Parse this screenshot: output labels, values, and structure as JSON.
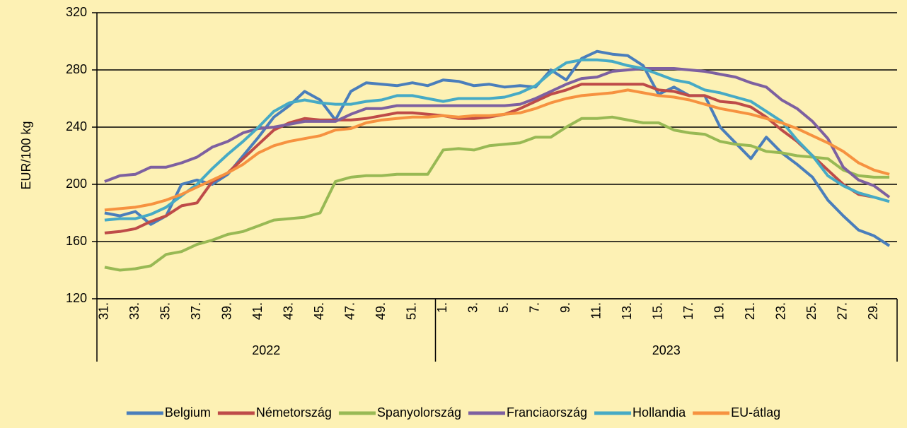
{
  "chart_data": {
    "type": "line",
    "y_label": "EUR/100 kg",
    "categories": [
      "31.",
      null,
      "33.",
      null,
      "35.",
      null,
      "37.",
      null,
      "39.",
      null,
      "41.",
      null,
      "43.",
      null,
      "45.",
      null,
      "47.",
      null,
      "49.",
      null,
      "51.",
      null,
      "1.",
      null,
      "3.",
      null,
      "5.",
      null,
      "7.",
      null,
      "9.",
      null,
      "11.",
      null,
      "13.",
      null,
      "15.",
      null,
      "17.",
      null,
      "19.",
      null,
      "21.",
      null,
      "23.",
      null,
      "25.",
      null,
      "27.",
      null,
      "29.",
      null
    ],
    "category_groups": [
      {
        "label": "2022",
        "size": 22
      },
      {
        "label": "2023",
        "size": 30
      }
    ],
    "ylim": [
      120,
      320
    ],
    "yticks": [
      120,
      160,
      200,
      240,
      280,
      320
    ],
    "grid": true,
    "series": [
      {
        "name": "Belgium",
        "color": "#4a7ebb",
        "values": [
          180,
          178,
          181,
          172,
          178,
          200,
          203,
          200,
          207,
          220,
          233,
          247,
          255,
          265,
          259,
          245,
          265,
          271,
          270,
          269,
          271,
          269,
          273,
          272,
          269,
          270,
          268,
          269,
          268,
          280,
          273,
          288,
          293,
          291,
          290,
          283,
          263,
          268,
          262,
          262,
          240,
          229,
          218,
          233,
          222,
          214,
          205,
          189,
          178,
          168,
          164,
          157
        ]
      },
      {
        "name": "Németország",
        "color": "#be4b48",
        "values": [
          166,
          167,
          169,
          174,
          178,
          185,
          187,
          202,
          208,
          218,
          228,
          238,
          243,
          246,
          245,
          245,
          245,
          246,
          248,
          250,
          250,
          249,
          248,
          246,
          246,
          247,
          249,
          253,
          258,
          263,
          266,
          270,
          270,
          270,
          270,
          270,
          266,
          265,
          262,
          262,
          258,
          257,
          254,
          247,
          238,
          230,
          220,
          210,
          200,
          193,
          191,
          null
        ]
      },
      {
        "name": "Spanyolország",
        "color": "#98b954",
        "values": [
          142,
          140,
          141,
          143,
          151,
          153,
          158,
          161,
          165,
          167,
          171,
          175,
          176,
          177,
          180,
          202,
          205,
          206,
          206,
          207,
          207,
          207,
          224,
          225,
          224,
          227,
          228,
          229,
          233,
          233,
          240,
          246,
          246,
          247,
          245,
          243,
          243,
          238,
          236,
          235,
          230,
          228,
          227,
          223,
          222,
          220,
          219,
          218,
          210,
          206,
          205,
          205
        ]
      },
      {
        "name": "Franciaország",
        "color": "#7d60a0",
        "values": [
          202,
          206,
          207,
          212,
          212,
          215,
          219,
          226,
          230,
          236,
          239,
          240,
          242,
          244,
          244,
          244,
          249,
          253,
          253,
          255,
          255,
          255,
          255,
          255,
          255,
          255,
          255,
          256,
          260,
          265,
          270,
          274,
          275,
          279,
          280,
          281,
          281,
          281,
          280,
          279,
          277,
          275,
          271,
          268,
          259,
          253,
          244,
          232,
          212,
          203,
          199,
          191
        ]
      },
      {
        "name": "Hollandia",
        "color": "#46aac5",
        "values": [
          175,
          176,
          176,
          179,
          184,
          192,
          200,
          211,
          221,
          230,
          240,
          251,
          257,
          259,
          257,
          256,
          256,
          258,
          259,
          262,
          262,
          260,
          258,
          260,
          260,
          260,
          261,
          264,
          269,
          278,
          285,
          287,
          287,
          286,
          283,
          281,
          277,
          273,
          271,
          266,
          264,
          261,
          258,
          251,
          244,
          231,
          220,
          206,
          199,
          194,
          191,
          188
        ]
      },
      {
        "name": "EU-átlag",
        "color": "#f69240",
        "values": [
          182,
          183,
          184,
          186,
          189,
          193,
          198,
          203,
          208,
          214,
          222,
          227,
          230,
          232,
          234,
          238,
          239,
          243,
          245,
          246,
          247,
          247,
          248,
          247,
          248,
          248,
          249,
          250,
          253,
          257,
          260,
          262,
          263,
          264,
          266,
          264,
          262,
          261,
          259,
          256,
          253,
          251,
          249,
          246,
          243,
          239,
          234,
          229,
          223,
          215,
          210,
          207
        ]
      }
    ]
  }
}
